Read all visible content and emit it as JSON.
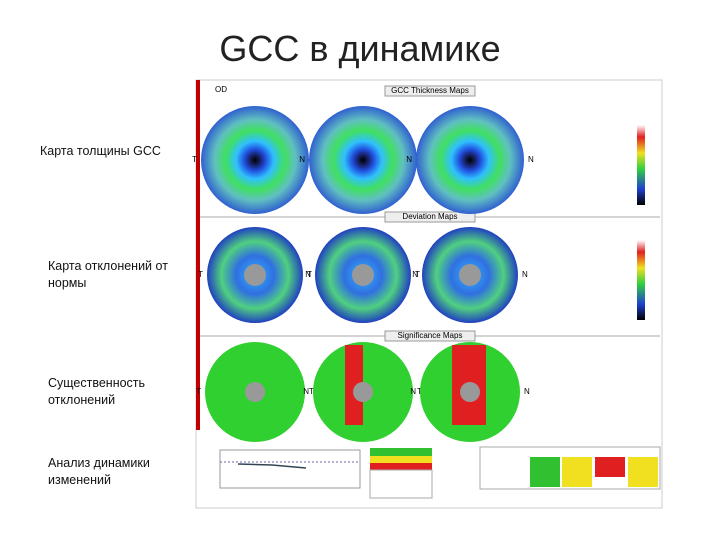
{
  "header": {
    "title": "GCC в динамике"
  },
  "labels": [
    "Карта толщины GCC",
    "Карта отклонений от нормы",
    "Существенность отклонений",
    "Анализ динамики изменений"
  ],
  "report": {
    "eye": "OD",
    "sections": [
      "GCC Thickness Maps",
      "Deviation Maps",
      "Significance Maps"
    ],
    "nasal": "N",
    "temporal": "T"
  }
}
